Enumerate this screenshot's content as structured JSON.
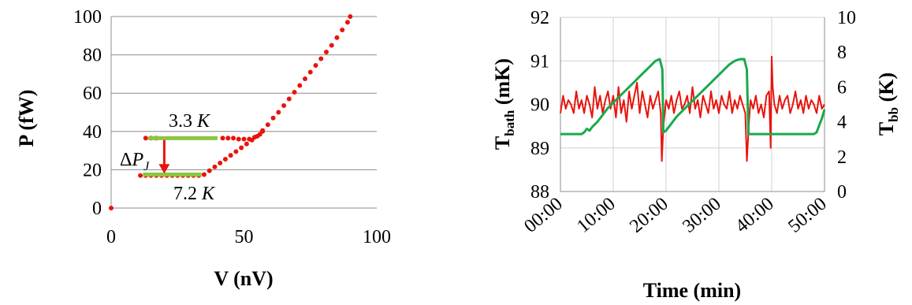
{
  "chart_data": [
    {
      "type": "scatter",
      "xlabel": "V (nV)",
      "ylabel": "P (fW)",
      "xlim": [
        0,
        100
      ],
      "ylim": [
        0,
        100
      ],
      "x_ticks": [
        "0",
        "50",
        "100"
      ],
      "y_ticks": [
        "0",
        "20",
        "40",
        "60",
        "80",
        "100"
      ],
      "grid": "horizontal",
      "colors": {
        "red": "#e8140c",
        "green": "#8cc63f",
        "arrow": "#e8140c"
      },
      "series": [
        {
          "color": "#e8140c",
          "points": [
            [
              0,
              0
            ],
            [
              11,
              17
            ],
            [
              13,
              17
            ],
            [
              15,
              17
            ],
            [
              17,
              17
            ],
            [
              19,
              17
            ],
            [
              21,
              17
            ],
            [
              23,
              17
            ],
            [
              25,
              17
            ],
            [
              27,
              17
            ],
            [
              29,
              17
            ],
            [
              31,
              17
            ],
            [
              33,
              17
            ],
            [
              35,
              17.5
            ],
            [
              37,
              19.5
            ],
            [
              39,
              21.5
            ],
            [
              41,
              23.5
            ],
            [
              43,
              25.5
            ],
            [
              45,
              27.5
            ],
            [
              47,
              29.5
            ],
            [
              49,
              31.5
            ],
            [
              51,
              33.5
            ],
            [
              53,
              35.5
            ],
            [
              55,
              37.5
            ],
            [
              57,
              40.5
            ],
            [
              59,
              43.5
            ],
            [
              61,
              47
            ],
            [
              63,
              50
            ],
            [
              65,
              53.5
            ],
            [
              67,
              57
            ],
            [
              69,
              60.5
            ],
            [
              71,
              64
            ],
            [
              73,
              67.5
            ],
            [
              75,
              71
            ],
            [
              77,
              74.5
            ],
            [
              79,
              78
            ],
            [
              81,
              81.5
            ],
            [
              83,
              85
            ],
            [
              85,
              89
            ],
            [
              87,
              93
            ],
            [
              89,
              97
            ],
            [
              90,
              100
            ],
            [
              13,
              36.5
            ],
            [
              15,
              36.5
            ],
            [
              17,
              36.5
            ],
            [
              42,
              36.5
            ],
            [
              44,
              36.5
            ],
            [
              46,
              36.5
            ],
            [
              48,
              36
            ],
            [
              50,
              36
            ],
            [
              52,
              36
            ],
            [
              54,
              37
            ],
            [
              56,
              38.5
            ],
            [
              57,
              40
            ]
          ]
        },
        {
          "color": "#8cc63f",
          "points": [
            [
              15,
              36.5
            ],
            [
              17,
              36.5
            ],
            [
              19,
              36.5
            ],
            [
              21,
              36.5
            ],
            [
              23,
              36.5
            ],
            [
              25,
              36.5
            ],
            [
              27,
              36.5
            ],
            [
              29,
              36.5
            ],
            [
              31,
              36.5
            ],
            [
              33,
              36.5
            ],
            [
              35,
              36.5
            ],
            [
              37,
              36.5
            ],
            [
              39,
              36.5
            ],
            [
              13,
              17.5
            ],
            [
              15,
              17.5
            ],
            [
              17,
              17.5
            ],
            [
              19,
              17.5
            ],
            [
              21,
              17.5
            ],
            [
              23,
              17.5
            ],
            [
              25,
              17.5
            ],
            [
              27,
              17.5
            ],
            [
              29,
              17.5
            ],
            [
              31,
              17.5
            ],
            [
              33,
              17.5
            ]
          ]
        }
      ],
      "annotations": {
        "top_label": "3.3 K",
        "bottom_label": "7.2 K",
        "delta_label": "ΔPJ"
      }
    },
    {
      "type": "line",
      "xlabel": "Time (min)",
      "ylabel_left": "Tbath (mK)",
      "ylabel_right": "Tbb (K)",
      "ylim_left": [
        88,
        92
      ],
      "ylim_right": [
        0,
        10
      ],
      "x_ticks": [
        "00:00",
        "10:00",
        "20:00",
        "30:00",
        "40:00",
        "50:00"
      ],
      "y_ticks_left": [
        "88",
        "89",
        "90",
        "91",
        "92"
      ],
      "y_ticks_right": [
        "0",
        "2",
        "4",
        "6",
        "8",
        "10"
      ],
      "grid": "both",
      "series": [
        {
          "axis": "left",
          "color": "#e8140c",
          "x": [
            0,
            0.5,
            1,
            1.5,
            2,
            2.5,
            3,
            3.5,
            4,
            4.5,
            5,
            5.5,
            6,
            6.5,
            7,
            7.5,
            8,
            8.5,
            9,
            9.5,
            10,
            10.5,
            11,
            11.5,
            12,
            12.5,
            13,
            13.5,
            14,
            14.5,
            15,
            15.5,
            16,
            16.5,
            17,
            17.5,
            18,
            18.5,
            19,
            19.2,
            19.5,
            20,
            20.5,
            21,
            21.5,
            22,
            22.5,
            23,
            23.5,
            24,
            24.5,
            25,
            25.5,
            26,
            26.5,
            27,
            27.5,
            28,
            28.5,
            29,
            29.5,
            30,
            30.5,
            31,
            31.5,
            32,
            32.5,
            33,
            33.5,
            34,
            34.5,
            35,
            35.3,
            35.7,
            36,
            36.5,
            37,
            37.5,
            38,
            38.5,
            39,
            39.5,
            39.8,
            40,
            40.2,
            40.5,
            41,
            41.5,
            42,
            42.5,
            43,
            43.5,
            44,
            44.5,
            45,
            45.5,
            46,
            46.5,
            47,
            47.5,
            48,
            48.5,
            49,
            49.5,
            50
          ],
          "y": [
            89.8,
            90.2,
            89.9,
            90.1,
            90.0,
            89.8,
            90.3,
            89.9,
            90.1,
            89.8,
            90.2,
            90.0,
            89.7,
            90.4,
            89.9,
            90.2,
            89.8,
            90.1,
            90.3,
            89.9,
            90.2,
            89.7,
            90.4,
            89.8,
            90.1,
            89.6,
            90.3,
            89.9,
            90.2,
            90.5,
            89.8,
            90.3,
            90.0,
            89.7,
            90.2,
            89.9,
            90.1,
            90.3,
            89.8,
            88.7,
            89.5,
            90.1,
            89.9,
            90.2,
            89.8,
            90.1,
            90.3,
            89.9,
            90.0,
            90.2,
            89.8,
            90.4,
            89.9,
            90.1,
            89.7,
            90.2,
            90.0,
            89.8,
            90.3,
            89.9,
            90.1,
            89.8,
            90.2,
            90.0,
            89.9,
            90.3,
            89.8,
            90.1,
            89.9,
            90.2,
            90.0,
            89.8,
            88.7,
            89.6,
            90.1,
            89.9,
            90.2,
            89.8,
            90.0,
            89.7,
            90.2,
            90.3,
            89.0,
            91.1,
            90.4,
            90.0,
            89.8,
            90.2,
            89.9,
            90.1,
            90.2,
            89.8,
            90.0,
            90.3,
            89.9,
            90.1,
            89.8,
            90.2,
            89.9,
            90.1,
            90.0,
            89.8,
            90.2,
            89.9,
            90.0
          ]
        },
        {
          "axis": "right",
          "color": "#1aa94c",
          "x": [
            0,
            4,
            4.5,
            5,
            5.5,
            6,
            7,
            8,
            9,
            10,
            11,
            12,
            13,
            14,
            15,
            16,
            17,
            18,
            18.8,
            19.3,
            19.5,
            20,
            21,
            22,
            23,
            24,
            25,
            26,
            27,
            28,
            29,
            30,
            31,
            32,
            33,
            34,
            34.8,
            35.3,
            35.6,
            36,
            37,
            38,
            39,
            40,
            41,
            42,
            43,
            44,
            45,
            46,
            46.5,
            47,
            48,
            48.5,
            49,
            49.5,
            50
          ],
          "y": [
            3.3,
            3.3,
            3.4,
            3.6,
            3.5,
            3.7,
            4.0,
            4.4,
            4.8,
            5.1,
            5.4,
            5.7,
            6.0,
            6.3,
            6.6,
            6.9,
            7.2,
            7.5,
            7.6,
            7.0,
            3.4,
            3.5,
            3.9,
            4.3,
            4.6,
            4.9,
            5.2,
            5.5,
            5.8,
            6.1,
            6.4,
            6.7,
            7.0,
            7.3,
            7.5,
            7.6,
            7.6,
            7.0,
            3.3,
            3.3,
            3.3,
            3.3,
            3.3,
            3.3,
            3.3,
            3.3,
            3.3,
            3.3,
            3.3,
            3.3,
            3.3,
            3.3,
            3.3,
            3.4,
            3.8,
            4.2,
            4.7
          ]
        }
      ]
    }
  ]
}
